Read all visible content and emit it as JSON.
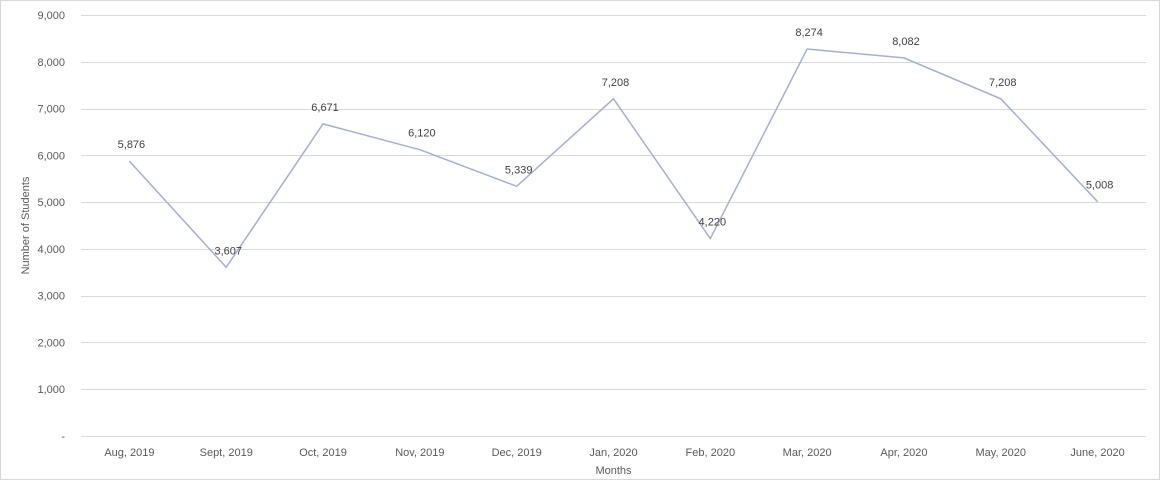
{
  "chart_data": {
    "type": "line",
    "categories": [
      "Aug, 2019",
      "Sept, 2019",
      "Oct, 2019",
      "Nov, 2019",
      "Dec, 2019",
      "Jan, 2020",
      "Feb, 2020",
      "Mar, 2020",
      "Apr, 2020",
      "May, 2020",
      "June, 2020"
    ],
    "values": [
      5876,
      3607,
      6671,
      6120,
      5339,
      7208,
      4220,
      8274,
      8082,
      7208,
      5008
    ],
    "data_labels": [
      "5,876",
      "3,607",
      "6,671",
      "6,120",
      "5,339",
      "7,208",
      "4,220",
      "8,274",
      "8,082",
      "7,208",
      "5,008"
    ],
    "y_ticks": [
      0,
      1000,
      2000,
      3000,
      4000,
      5000,
      6000,
      7000,
      8000,
      9000
    ],
    "y_tick_labels": [
      "-",
      "1,000",
      "2,000",
      "3,000",
      "4,000",
      "5,000",
      "6,000",
      "7,000",
      "8,000",
      "9,000"
    ],
    "ylim": [
      0,
      9000
    ],
    "xlabel": "Months",
    "ylabel": "Number of Students",
    "grid": true,
    "legend": "none",
    "line_color": "#a5aed6"
  }
}
